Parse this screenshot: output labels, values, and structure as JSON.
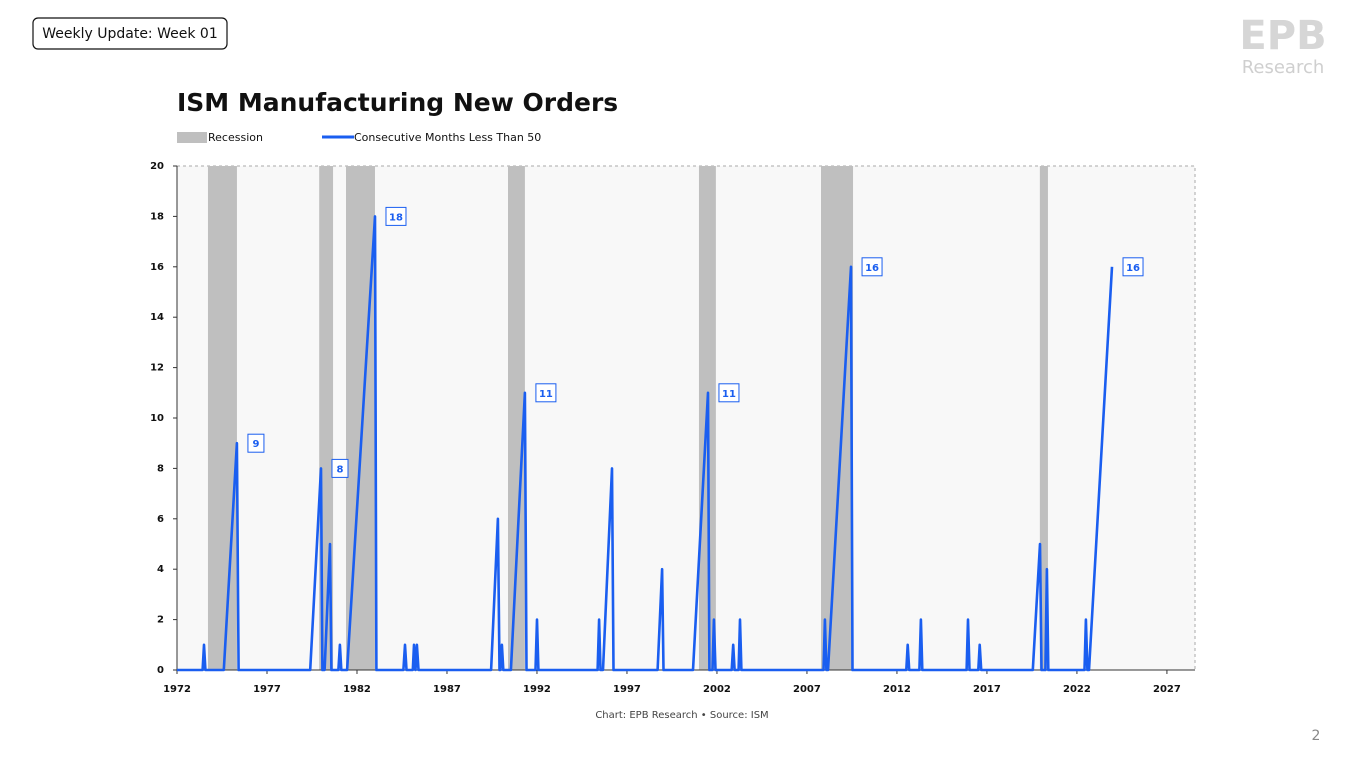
{
  "header": {
    "badge": "Weekly Update: Week 01",
    "logo": "EPB",
    "logo_sub": "Research",
    "page_number": "2"
  },
  "chart_data": {
    "type": "line",
    "title": "ISM Manufacturing New Orders",
    "source": "Chart: EPB Research  •  Source: ISM",
    "recession": {
      "name": "Recession",
      "color": "#bfbfbf",
      "periods": [
        [
          1973.72,
          1975.33
        ],
        [
          1979.9,
          1980.67
        ],
        [
          1981.39,
          1983.0
        ],
        [
          1990.39,
          1991.33
        ],
        [
          2001.0,
          2001.94
        ],
        [
          2007.78,
          2009.56
        ],
        [
          2019.94,
          2020.39
        ]
      ]
    },
    "series": [
      {
        "name": "Consecutive Months Less Than 50",
        "color": "#1a5ef0",
        "x": [
          1972,
          1973.42,
          1973.5,
          1973.58,
          1974.6,
          1975.33,
          1975.42,
          1979.4,
          1980.0,
          1980.08,
          1980.2,
          1980.5,
          1980.58,
          1980.97,
          1981.05,
          1981.13,
          1981.45,
          1983.0,
          1983.08,
          1984.58,
          1984.67,
          1984.75,
          1985.1,
          1985.17,
          1985.25,
          1985.33,
          1985.42,
          1989.45,
          1989.83,
          1989.92,
          1989.97,
          1990.05,
          1990.13,
          1990.55,
          1991.33,
          1991.42,
          1991.92,
          1992.0,
          1992.08,
          1995.37,
          1995.45,
          1995.53,
          1995.67,
          1996.17,
          1996.25,
          1998.7,
          1998.95,
          1999.03,
          2000.67,
          2001.5,
          2001.58,
          2001.75,
          2001.83,
          2001.92,
          2002.82,
          2002.9,
          2002.98,
          2003.2,
          2003.28,
          2003.36,
          2007.92,
          2008.0,
          2008.08,
          2008.17,
          2009.45,
          2009.53,
          2012.52,
          2012.6,
          2012.68,
          2013.25,
          2013.33,
          2013.41,
          2015.87,
          2015.95,
          2016.03,
          2016.52,
          2016.6,
          2016.68,
          2019.55,
          2019.95,
          2020.03,
          2020.25,
          2020.33,
          2020.41,
          2022.42,
          2022.5,
          2022.58,
          2022.67,
          2023.95
        ],
        "values": [
          0,
          0,
          1,
          0,
          0,
          9,
          0,
          0,
          8,
          0,
          0,
          5,
          0,
          0,
          1,
          0,
          0,
          18,
          0,
          0,
          1,
          0,
          0,
          1,
          0,
          1,
          0,
          0,
          6,
          0,
          0,
          1,
          0,
          0,
          11,
          0,
          0,
          2,
          0,
          0,
          2,
          0,
          0,
          8,
          0,
          0,
          4,
          0,
          0,
          11,
          0,
          0,
          2,
          0,
          0,
          1,
          0,
          0,
          2,
          0,
          0,
          2,
          0,
          0,
          16,
          0,
          0,
          1,
          0,
          0,
          2,
          0,
          0,
          2,
          0,
          0,
          1,
          0,
          0,
          5,
          0,
          0,
          4,
          0,
          0,
          2,
          0,
          0,
          16
        ],
        "value_labels": [
          null,
          null,
          null,
          null,
          null,
          "9",
          null,
          null,
          "8",
          null,
          null,
          null,
          null,
          null,
          null,
          null,
          null,
          "18",
          null,
          null,
          null,
          null,
          null,
          null,
          null,
          null,
          null,
          null,
          null,
          null,
          null,
          null,
          null,
          null,
          "11",
          null,
          null,
          null,
          null,
          null,
          null,
          null,
          null,
          null,
          null,
          null,
          null,
          null,
          null,
          "11",
          null,
          null,
          null,
          null,
          null,
          null,
          null,
          null,
          null,
          null,
          null,
          null,
          null,
          null,
          "16",
          null,
          null,
          null,
          null,
          null,
          null,
          null,
          null,
          null,
          null,
          null,
          null,
          null,
          null,
          null,
          null,
          null,
          null,
          null,
          null,
          null,
          null,
          null,
          "16"
        ]
      }
    ],
    "xlim": [
      1972,
      2028.56
    ],
    "xticks": [
      1972,
      1977,
      1982,
      1987,
      1992,
      1997,
      2002,
      2007,
      2012,
      2017,
      2022,
      2027
    ],
    "ylim": [
      0,
      20
    ],
    "yticks": [
      0,
      2,
      4,
      6,
      8,
      10,
      12,
      14,
      16,
      18,
      20
    ]
  }
}
